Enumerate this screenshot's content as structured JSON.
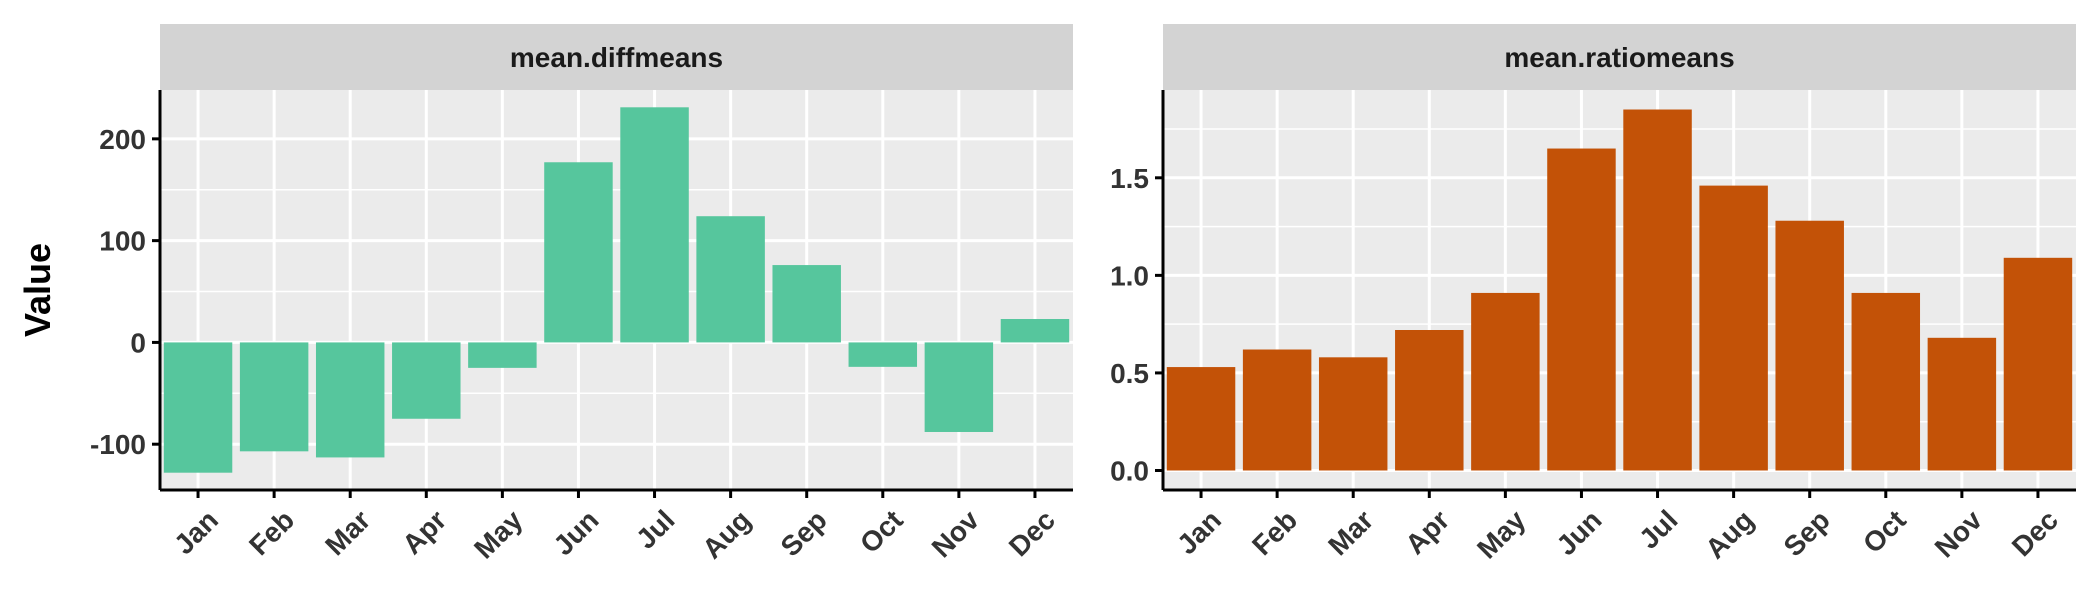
{
  "y_axis_title": "Value",
  "colors": {
    "panel_bg": "#EBEBEB",
    "strip_bg": "#D3D3D3",
    "grid": "#FFFFFF",
    "axis": "#000000"
  },
  "chart_data": [
    {
      "type": "bar",
      "title": "mean.diffmeans",
      "categories": [
        "Jan",
        "Feb",
        "Mar",
        "Apr",
        "May",
        "Jun",
        "Jul",
        "Aug",
        "Sep",
        "Oct",
        "Nov",
        "Dec"
      ],
      "values": [
        -128,
        -107,
        -113,
        -75,
        -25,
        177,
        231,
        124,
        76,
        -24,
        -88,
        23
      ],
      "ylim": [
        -145,
        248
      ],
      "yticks": [
        -100,
        0,
        100,
        200
      ],
      "ytick_labels": [
        "-100",
        "0",
        "100",
        "200"
      ],
      "color": "#56C69D",
      "grid": true
    },
    {
      "type": "bar",
      "title": "mean.ratiomeans",
      "categories": [
        "Jan",
        "Feb",
        "Mar",
        "Apr",
        "May",
        "Jun",
        "Jul",
        "Aug",
        "Sep",
        "Oct",
        "Nov",
        "Dec"
      ],
      "values": [
        0.53,
        0.62,
        0.58,
        0.72,
        0.91,
        1.65,
        1.85,
        1.46,
        1.28,
        0.91,
        0.68,
        1.09
      ],
      "ylim": [
        -0.1,
        1.95
      ],
      "yticks": [
        0,
        0.5,
        1.0,
        1.5
      ],
      "ytick_labels": [
        "0.0",
        "0.5",
        "1.0",
        "1.5"
      ],
      "color": "#C35207",
      "grid": true
    }
  ]
}
